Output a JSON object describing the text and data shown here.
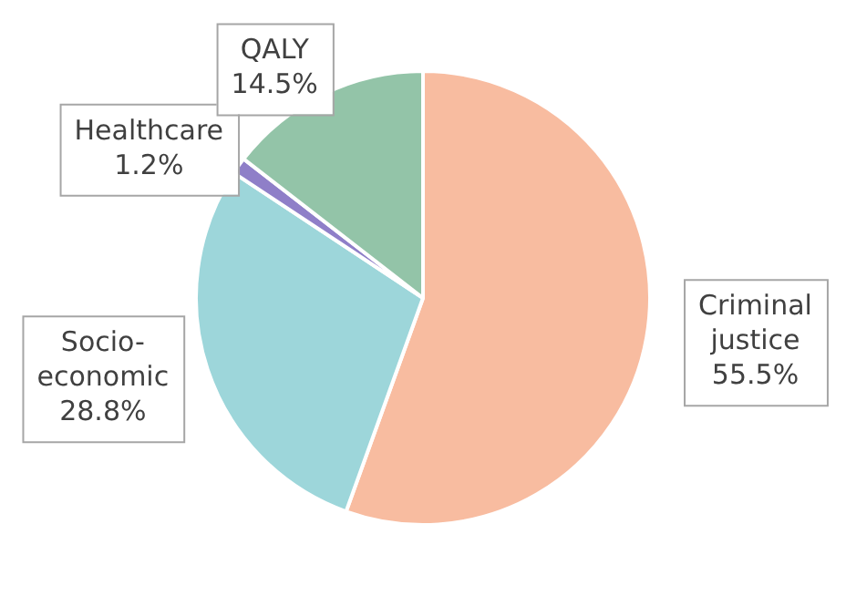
{
  "chart_data": {
    "type": "pie",
    "categories": [
      "Criminal justice",
      "Socio-economic",
      "Healthcare",
      "QALY"
    ],
    "values": [
      55.5,
      28.8,
      1.2,
      14.5
    ],
    "colors": [
      "#f8bca0",
      "#9dd6da",
      "#8f7fc8",
      "#93c4a8"
    ],
    "value_labels": [
      "55.5%",
      "28.8%",
      "1.2%",
      "14.5%"
    ],
    "legend": false
  }
}
